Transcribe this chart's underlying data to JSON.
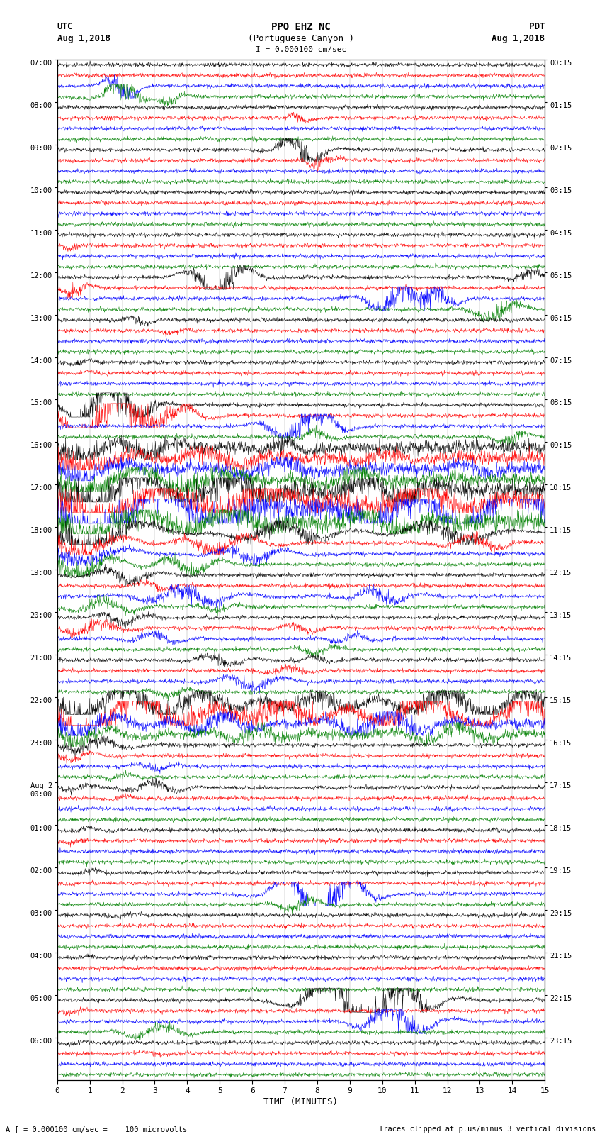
{
  "title_line1": "PPO EHZ NC",
  "title_line2": "(Portuguese Canyon )",
  "title_scale": "I = 0.000100 cm/sec",
  "left_header_line1": "UTC",
  "left_header_line2": "Aug 1,2018",
  "right_header_line1": "PDT",
  "right_header_line2": "Aug 1,2018",
  "xlabel": "TIME (MINUTES)",
  "footer_left": "A [ = 0.000100 cm/sec =    100 microvolts",
  "footer_right": "Traces clipped at plus/minus 3 vertical divisions",
  "utc_labels": [
    "07:00",
    "08:00",
    "09:00",
    "10:00",
    "11:00",
    "12:00",
    "13:00",
    "14:00",
    "15:00",
    "16:00",
    "17:00",
    "18:00",
    "19:00",
    "20:00",
    "21:00",
    "22:00",
    "23:00",
    "Aug 2\n00:00",
    "01:00",
    "02:00",
    "03:00",
    "04:00",
    "05:00",
    "06:00"
  ],
  "pdt_labels": [
    "00:15",
    "01:15",
    "02:15",
    "03:15",
    "04:15",
    "05:15",
    "06:15",
    "07:15",
    "08:15",
    "09:15",
    "10:15",
    "11:15",
    "12:15",
    "13:15",
    "14:15",
    "15:15",
    "16:15",
    "17:15",
    "18:15",
    "19:15",
    "20:15",
    "21:15",
    "22:15",
    "23:15"
  ],
  "trace_colors": [
    "black",
    "red",
    "blue",
    "green"
  ],
  "num_rows": 96,
  "xmin": 0,
  "xmax": 15,
  "xticks": [
    0,
    1,
    2,
    3,
    4,
    5,
    6,
    7,
    8,
    9,
    10,
    11,
    12,
    13,
    14,
    15
  ],
  "background_color": "white",
  "seed": 12345
}
